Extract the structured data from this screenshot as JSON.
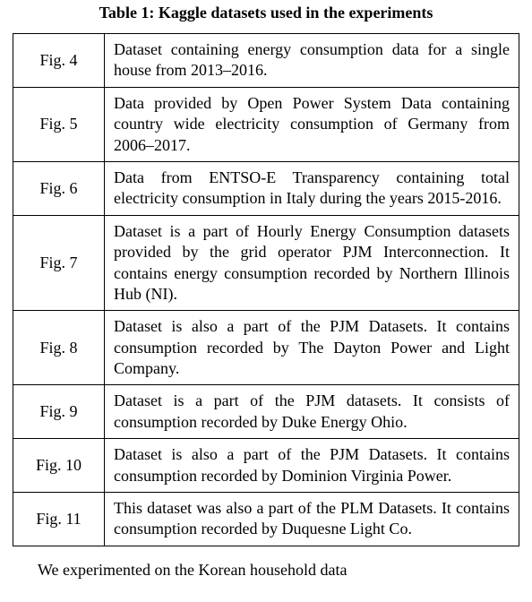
{
  "title": "Table 1: Kaggle datasets used in the experiments",
  "table": {
    "rows": [
      {
        "fig": "Fig. 4",
        "desc": "Dataset containing energy consumption data for a single house from 2013–2016."
      },
      {
        "fig": "Fig. 5",
        "desc": "Data provided by Open Power System Data containing country wide electricity consumption of Germany from 2006–2017."
      },
      {
        "fig": "Fig. 6",
        "desc": "Data from ENTSO-E Transparency containing total electricity consumption in Italy during the years 2015-2016."
      },
      {
        "fig": "Fig. 7",
        "desc": "Dataset is a part of Hourly Energy Consumption datasets provided by the grid operator PJM Interconnection. It contains energy consumption recorded by Northern Illinois Hub (NI)."
      },
      {
        "fig": "Fig. 8",
        "desc": "Dataset is also a part of the PJM Datasets. It contains consumption recorded by The Dayton Power and Light Company."
      },
      {
        "fig": "Fig. 9",
        "desc": "Dataset is a part of the PJM datasets. It consists of consumption recorded by Duke Energy Ohio."
      },
      {
        "fig": "Fig. 10",
        "desc": "Dataset is also a part of the PJM Datasets. It contains consumption recorded by Dominion Virginia Power."
      },
      {
        "fig": "Fig. 11",
        "desc": "This dataset was also a part of the PLM Datasets. It contains consumption recorded by Duquesne Light Co."
      }
    ]
  },
  "footer": "We experimented on the Korean household data"
}
